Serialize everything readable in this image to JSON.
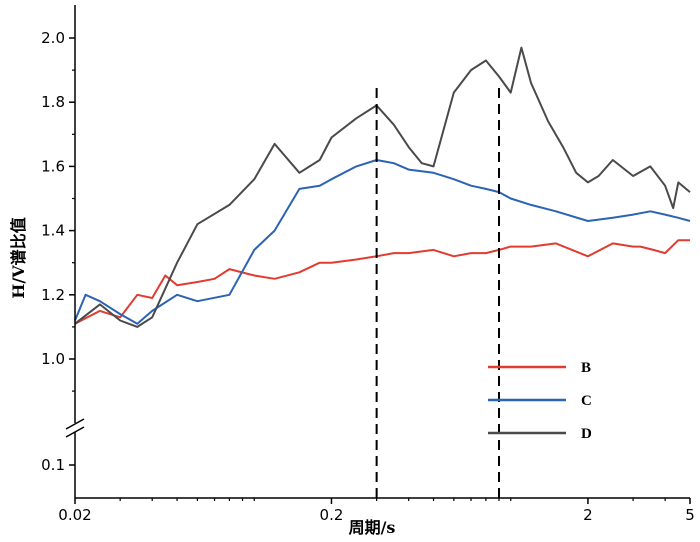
{
  "chart_data": {
    "type": "line",
    "xlabel": "周期/s",
    "ylabel": "H/V谱比值",
    "x_scale": "log",
    "xlim": [
      0.02,
      5
    ],
    "x_ticks": [
      "0.02",
      "0.2",
      "2",
      "5"
    ],
    "y_ticks_upper": [
      "1.0",
      "1.2",
      "1.4",
      "1.6",
      "1.8",
      "2.0"
    ],
    "y_ticks_lower": [
      "0.1"
    ],
    "ylim_upper": [
      0.8,
      2.1
    ],
    "axis_break": "y",
    "grid": false,
    "legend_position": "lower-right",
    "vertical_markers": [
      0.3,
      0.9
    ],
    "series": [
      {
        "name": "B",
        "color": "#e03c31",
        "x": [
          0.02,
          0.025,
          0.03,
          0.035,
          0.04,
          0.045,
          0.05,
          0.06,
          0.07,
          0.08,
          0.1,
          0.12,
          0.15,
          0.18,
          0.2,
          0.25,
          0.3,
          0.35,
          0.4,
          0.5,
          0.6,
          0.7,
          0.8,
          0.9,
          1.0,
          1.2,
          1.5,
          2.0,
          2.5,
          3.0,
          3.2,
          3.6,
          4.0,
          4.5,
          5.0
        ],
        "values": [
          1.11,
          1.15,
          1.13,
          1.2,
          1.19,
          1.26,
          1.23,
          1.24,
          1.25,
          1.28,
          1.26,
          1.25,
          1.27,
          1.3,
          1.3,
          1.31,
          1.32,
          1.33,
          1.33,
          1.34,
          1.32,
          1.33,
          1.33,
          1.34,
          1.35,
          1.35,
          1.36,
          1.32,
          1.36,
          1.35,
          1.35,
          1.34,
          1.33,
          1.37,
          1.37
        ]
      },
      {
        "name": "C",
        "color": "#2b63b5",
        "x": [
          0.02,
          0.022,
          0.025,
          0.03,
          0.035,
          0.04,
          0.05,
          0.06,
          0.08,
          0.1,
          0.12,
          0.15,
          0.18,
          0.2,
          0.25,
          0.3,
          0.35,
          0.4,
          0.5,
          0.6,
          0.7,
          0.8,
          0.9,
          1.0,
          1.2,
          1.5,
          2.0,
          2.5,
          3.0,
          3.5,
          4.0,
          4.5,
          5.0
        ],
        "values": [
          1.12,
          1.2,
          1.18,
          1.14,
          1.11,
          1.15,
          1.2,
          1.18,
          1.2,
          1.34,
          1.4,
          1.53,
          1.54,
          1.56,
          1.6,
          1.62,
          1.61,
          1.59,
          1.58,
          1.56,
          1.54,
          1.53,
          1.52,
          1.5,
          1.48,
          1.46,
          1.43,
          1.44,
          1.45,
          1.46,
          1.45,
          1.44,
          1.43
        ]
      },
      {
        "name": "D",
        "color": "#4a4a4a",
        "x": [
          0.02,
          0.025,
          0.03,
          0.035,
          0.04,
          0.05,
          0.06,
          0.08,
          0.1,
          0.12,
          0.15,
          0.18,
          0.2,
          0.25,
          0.3,
          0.35,
          0.4,
          0.45,
          0.5,
          0.6,
          0.7,
          0.8,
          0.9,
          1.0,
          1.1,
          1.2,
          1.4,
          1.6,
          1.8,
          2.0,
          2.2,
          2.5,
          3.0,
          3.5,
          4.0,
          4.3,
          4.5,
          5.0
        ],
        "values": [
          1.11,
          1.17,
          1.12,
          1.1,
          1.13,
          1.3,
          1.42,
          1.48,
          1.56,
          1.67,
          1.58,
          1.62,
          1.69,
          1.75,
          1.79,
          1.73,
          1.66,
          1.61,
          1.6,
          1.83,
          1.9,
          1.93,
          1.88,
          1.83,
          1.97,
          1.86,
          1.74,
          1.66,
          1.58,
          1.55,
          1.57,
          1.62,
          1.57,
          1.6,
          1.54,
          1.47,
          1.55,
          1.52
        ]
      }
    ]
  }
}
